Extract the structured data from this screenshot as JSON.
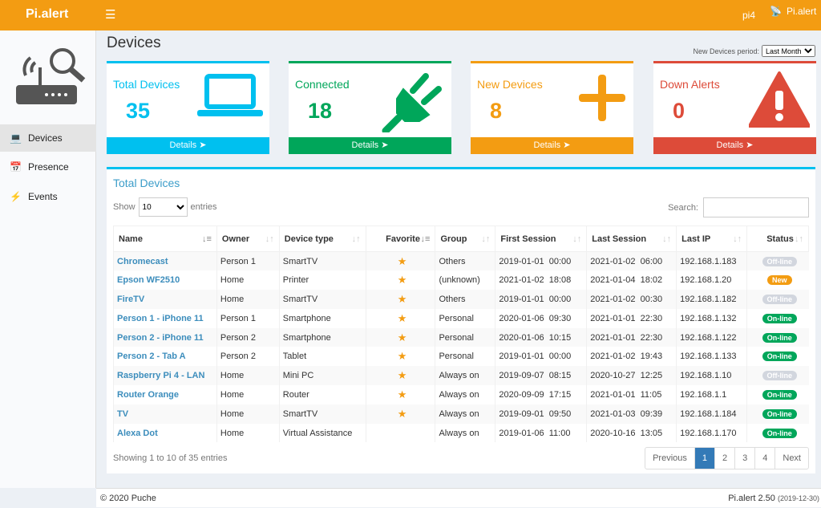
{
  "header": {
    "logo": "Pi.alert",
    "menu_icon": "hamburger-icon",
    "host": "pi4",
    "user": "Pi.alert"
  },
  "sidebar": {
    "items": [
      {
        "label": "Devices",
        "icon": "laptop-icon",
        "active": true
      },
      {
        "label": "Presence",
        "icon": "calendar-icon"
      },
      {
        "label": "Events",
        "icon": "bolt-icon"
      }
    ]
  },
  "page": {
    "title": "Devices",
    "period_label": "New Devices period:",
    "period_value": "Last Month"
  },
  "cards": [
    {
      "label": "Total Devices",
      "value": "35",
      "details": "Details",
      "color": "#00c0ef",
      "icon": "laptop-icon"
    },
    {
      "label": "Connected",
      "value": "18",
      "details": "Details",
      "color": "#00a65a",
      "icon": "plug-icon"
    },
    {
      "label": "New Devices",
      "value": "8",
      "details": "Details",
      "color": "#f39c12",
      "icon": "plus-icon"
    },
    {
      "label": "Down Alerts",
      "value": "0",
      "details": "Details",
      "color": "#dd4b39",
      "icon": "warning-icon"
    }
  ],
  "table": {
    "title": "Total Devices",
    "show": "Show",
    "entries_value": "10",
    "entries": "entries",
    "search_label": "Search:",
    "columns": [
      "Name",
      "Owner",
      "Device type",
      "Favorite",
      "Group",
      "First Session",
      "Last Session",
      "Last IP",
      "Status"
    ],
    "rows": [
      [
        "Chromecast",
        "Person 1",
        "SmartTV",
        true,
        "Others",
        "2019-01-01  00:00",
        "2021-01-02  06:00",
        "192.168.1.183",
        "Off-line"
      ],
      [
        "Epson WF2510",
        "Home",
        "Printer",
        true,
        "(unknown)",
        "2021-01-02  18:08",
        "2021-01-04  18:02",
        "192.168.1.20",
        "New"
      ],
      [
        "FireTV",
        "Home",
        "SmartTV",
        true,
        "Others",
        "2019-01-01  00:00",
        "2021-01-02  00:30",
        "192.168.1.182",
        "Off-line"
      ],
      [
        "Person 1 - iPhone 11",
        "Person 1",
        "Smartphone",
        true,
        "Personal",
        "2020-01-06  09:30",
        "2021-01-01  22:30",
        "192.168.1.132",
        "On-line"
      ],
      [
        "Person 2 - iPhone 11",
        "Person 2",
        "Smartphone",
        true,
        "Personal",
        "2020-01-06  10:15",
        "2021-01-01  22:30",
        "192.168.1.122",
        "On-line"
      ],
      [
        "Person 2 - Tab A",
        "Person 2",
        "Tablet",
        true,
        "Personal",
        "2019-01-01  00:00",
        "2021-01-02  19:43",
        "192.168.1.133",
        "On-line"
      ],
      [
        "Raspberry Pi 4 - LAN",
        "Home",
        "Mini PC",
        true,
        "Always on",
        "2019-09-07  08:15",
        "2020-10-27  12:25",
        "192.168.1.10",
        "Off-line"
      ],
      [
        "Router Orange",
        "Home",
        "Router",
        true,
        "Always on",
        "2020-09-09  17:15",
        "2021-01-01  11:05",
        "192.168.1.1",
        "On-line"
      ],
      [
        "TV",
        "Home",
        "SmartTV",
        true,
        "Always on",
        "2019-09-01  09:50",
        "2021-01-03  09:39",
        "192.168.1.184",
        "On-line"
      ],
      [
        "Alexa Dot",
        "Home",
        "Virtual Assistance",
        false,
        "Always on",
        "2019-01-06  11:00",
        "2020-10-16  13:05",
        "192.168.1.170",
        "On-line"
      ]
    ],
    "info": "Showing 1 to 10 of 35 entries",
    "pagination": [
      "Previous",
      "1",
      "2",
      "3",
      "4",
      "Next"
    ],
    "current_page": "1"
  },
  "status_colors": {
    "Off-line": "#d2d6de",
    "New": "#f39c12",
    "On-line": "#00a65a"
  },
  "footer": {
    "copyright": "© 2020 Puche",
    "version": "Pi.alert  2.50",
    "date": "(2019-12-30)"
  }
}
